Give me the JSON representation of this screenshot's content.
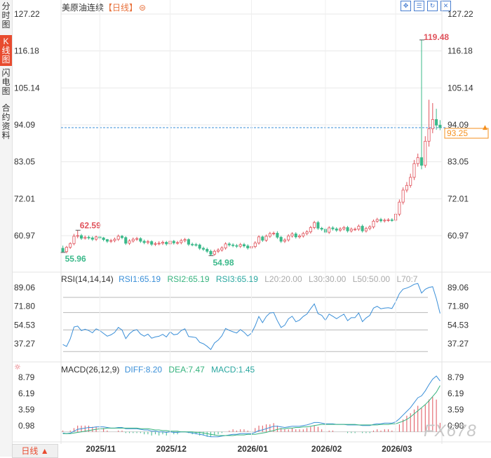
{
  "sidebar": {
    "tabs": [
      {
        "label": "分时图",
        "active": false
      },
      {
        "label": "K线图",
        "active": true
      },
      {
        "label": "闪电图",
        "active": false
      },
      {
        "label": "合约资料",
        "active": false
      }
    ]
  },
  "header": {
    "instrument": "美原油连续",
    "period": "【日线】",
    "period_icon": "⊜",
    "tools": [
      "expand-icon",
      "list-icon",
      "refresh-icon",
      "close-icon"
    ]
  },
  "bottom_tab": {
    "label": "日线 ▲"
  },
  "price_panel": {
    "y_ticks": [
      "127.22",
      "116.18",
      "105.14",
      "94.09",
      "83.05",
      "72.01",
      "60.97"
    ],
    "last_price": "93.25",
    "annotations": {
      "high": "119.48",
      "low": "54.98",
      "left_high": "62.59",
      "left_low": "55.96"
    }
  },
  "rsi_panel": {
    "label": "RSI(14,14,14)",
    "rsi1": "RSI1:65.19",
    "rsi2": "RSI2:65.19",
    "rsi3": "RSI3:65.19",
    "l20": "L20:20.00",
    "l30": "L30:30.00",
    "l50": "L50:50.00",
    "l70": "L70:7",
    "y_ticks": [
      "89.06",
      "71.80",
      "54.53",
      "37.27"
    ]
  },
  "macd_panel": {
    "label": "MACD(26,12,9)",
    "diff": "DIFF:8.20",
    "dea": "DEA:7.47",
    "macd": "MACD:1.45",
    "y_ticks": [
      "8.79",
      "6.19",
      "3.59",
      "0.98"
    ]
  },
  "x_axis": {
    "labels": [
      "2025/11",
      "2025/12",
      "2026/01",
      "2026/02",
      "2026/03"
    ]
  },
  "watermark": "FX678",
  "colors": {
    "up": "#e0525b",
    "down": "#3bb98a",
    "rsi": "#3a8fd8",
    "label_blue": "#3a8fd8",
    "label_green": "#36b37e",
    "last_price": "#f5901e",
    "grid": "#e8e8e8",
    "macd_diff": "#3a8fd8",
    "macd_dea": "#36b37e"
  },
  "chart_data": {
    "type": "candlestick",
    "x": [
      "2025/10/20",
      "2025/10/21",
      "2025/10/22",
      "2025/10/23",
      "2025/10/24",
      "2025/10/27",
      "2025/10/28",
      "2025/10/29",
      "2025/10/30",
      "2025/10/31",
      "2025/11/03",
      "2025/11/04",
      "2025/11/05",
      "2025/11/06",
      "2025/11/07",
      "2025/11/10",
      "2025/11/11",
      "2025/11/12",
      "2025/11/13",
      "2025/11/14",
      "2025/11/17",
      "2025/11/18",
      "2025/11/19",
      "2025/11/20",
      "2025/11/21",
      "2025/11/24",
      "2025/11/25",
      "2025/11/26",
      "2025/11/28",
      "2025/12/01",
      "2025/12/02",
      "2025/12/03",
      "2025/12/04",
      "2025/12/05",
      "2025/12/08",
      "2025/12/09",
      "2025/12/10",
      "2025/12/11",
      "2025/12/12",
      "2025/12/15",
      "2025/12/16",
      "2025/12/17",
      "2025/12/18",
      "2025/12/19",
      "2025/12/22",
      "2025/12/23",
      "2025/12/24",
      "2025/12/26",
      "2025/12/29",
      "2025/12/30",
      "2025/12/31",
      "2026/01/02",
      "2026/01/05",
      "2026/01/06",
      "2026/01/07",
      "2026/01/08",
      "2026/01/09",
      "2026/01/12",
      "2026/01/13",
      "2026/01/14",
      "2026/01/15",
      "2026/01/16",
      "2026/01/20",
      "2026/01/21",
      "2026/01/22",
      "2026/01/23",
      "2026/01/26",
      "2026/01/27",
      "2026/01/28",
      "2026/01/29",
      "2026/01/30",
      "2026/02/02",
      "2026/02/03",
      "2026/02/04",
      "2026/02/05",
      "2026/02/06",
      "2026/02/09",
      "2026/02/10",
      "2026/02/11",
      "2026/02/12",
      "2026/02/13",
      "2026/02/17",
      "2026/02/18",
      "2026/02/19",
      "2026/02/20",
      "2026/02/23",
      "2026/02/24",
      "2026/02/25",
      "2026/02/26",
      "2026/02/27",
      "2026/03/02",
      "2026/03/03",
      "2026/03/04",
      "2026/03/05",
      "2026/03/06",
      "2026/03/09",
      "2026/03/10",
      "2026/03/11",
      "2026/03/12",
      "2026/03/13",
      "2026/03/16",
      "2026/03/17",
      "2026/03/18"
    ],
    "open": [
      57.2,
      56.2,
      57.5,
      58.6,
      60.8,
      61.0,
      60.2,
      60.5,
      60.3,
      59.9,
      60.6,
      60.3,
      59.8,
      59.3,
      59.5,
      59.9,
      60.8,
      60.4,
      58.7,
      59.4,
      59.9,
      60.1,
      59.3,
      58.9,
      59.2,
      58.4,
      58.6,
      58.7,
      59.0,
      58.5,
      59.3,
      58.8,
      58.9,
      59.5,
      59.8,
      58.4,
      58.3,
      58.2,
      57.2,
      56.9,
      56.3,
      55.4,
      56.3,
      56.7,
      57.3,
      58.5,
      58.2,
      58.0,
      57.8,
      58.3,
      57.9,
      57.3,
      57.7,
      58.8,
      60.6,
      59.6,
      60.8,
      61.6,
      61.7,
      60.5,
      59.3,
      59.7,
      60.9,
      61.5,
      60.6,
      60.9,
      61.6,
      62.1,
      63.4,
      64.9,
      63.2,
      62.9,
      62.0,
      63.3,
      63.0,
      62.6,
      63.0,
      63.4,
      62.4,
      62.9,
      62.9,
      63.8,
      62.4,
      63.1,
      63.6,
      65.3,
      65.8,
      65.4,
      65.6,
      65.7,
      65.6,
      67.4,
      71.0,
      74.6,
      76.0,
      78.4,
      82.5,
      84.3,
      82.0,
      89.2,
      92.9,
      95.7,
      94.0
    ],
    "close": [
      56.2,
      57.5,
      58.6,
      60.8,
      61.0,
      60.2,
      60.5,
      60.3,
      59.9,
      60.6,
      60.3,
      59.8,
      59.3,
      59.5,
      59.9,
      60.8,
      60.4,
      58.7,
      59.4,
      59.9,
      60.1,
      59.3,
      58.9,
      59.2,
      58.4,
      58.6,
      58.7,
      59.0,
      58.5,
      59.3,
      58.8,
      58.9,
      59.5,
      59.8,
      58.4,
      58.3,
      58.2,
      57.2,
      56.9,
      56.3,
      55.4,
      56.3,
      56.7,
      57.3,
      58.5,
      58.2,
      58.0,
      57.8,
      58.3,
      57.9,
      57.3,
      57.7,
      58.8,
      60.6,
      59.6,
      60.8,
      61.6,
      61.7,
      60.5,
      59.3,
      59.7,
      60.9,
      61.5,
      60.6,
      60.9,
      61.6,
      62.1,
      63.4,
      64.9,
      63.2,
      62.9,
      62.0,
      63.3,
      63.0,
      62.6,
      63.0,
      63.4,
      62.4,
      62.9,
      62.9,
      63.8,
      62.4,
      63.1,
      63.6,
      65.3,
      65.8,
      65.4,
      65.6,
      65.7,
      65.6,
      67.4,
      71.0,
      74.6,
      76.0,
      78.4,
      82.5,
      84.3,
      82.0,
      89.2,
      92.9,
      95.7,
      94.0,
      93.25
    ],
    "high": [
      58.0,
      57.9,
      59.0,
      61.5,
      62.59,
      61.5,
      61.0,
      61.0,
      60.8,
      61.0,
      61.0,
      60.6,
      60.0,
      60.0,
      60.4,
      61.3,
      61.2,
      60.8,
      59.9,
      60.4,
      60.6,
      60.5,
      59.8,
      59.7,
      59.6,
      59.1,
      59.3,
      59.5,
      59.4,
      59.8,
      59.7,
      59.4,
      60.0,
      60.3,
      60.2,
      58.9,
      58.8,
      58.6,
      57.7,
      57.4,
      56.8,
      56.8,
      57.2,
      57.8,
      59.0,
      59.0,
      58.7,
      58.5,
      58.8,
      58.8,
      58.4,
      58.2,
      59.3,
      61.1,
      61.0,
      61.3,
      62.1,
      62.2,
      62.3,
      60.9,
      60.2,
      61.4,
      62.0,
      62.0,
      61.4,
      62.1,
      62.6,
      63.9,
      65.4,
      65.4,
      63.6,
      63.4,
      63.8,
      63.8,
      63.5,
      63.5,
      63.9,
      63.9,
      63.4,
      63.4,
      64.3,
      64.3,
      63.6,
      64.1,
      65.8,
      66.3,
      66.3,
      66.1,
      66.2,
      66.2,
      67.9,
      71.8,
      75.4,
      77.0,
      79.5,
      83.6,
      85.5,
      119.48,
      90.7,
      101.6,
      100.6,
      98.9,
      95.5
    ],
    "low": [
      55.96,
      55.7,
      57.0,
      58.1,
      60.2,
      59.7,
      59.8,
      59.8,
      59.4,
      59.4,
      59.8,
      59.3,
      58.8,
      58.8,
      59.0,
      59.4,
      59.9,
      58.2,
      58.2,
      58.9,
      59.4,
      58.8,
      58.4,
      58.4,
      57.9,
      57.9,
      58.1,
      58.2,
      58.0,
      58.0,
      58.3,
      58.3,
      58.4,
      59.0,
      57.9,
      57.8,
      57.7,
      56.7,
      56.4,
      55.8,
      54.98,
      54.98,
      55.8,
      56.2,
      56.8,
      57.7,
      57.5,
      57.3,
      57.3,
      57.4,
      56.8,
      56.8,
      57.2,
      58.3,
      59.1,
      59.1,
      60.3,
      61.1,
      60.0,
      58.8,
      58.8,
      59.2,
      60.4,
      60.1,
      60.1,
      60.4,
      61.1,
      61.6,
      62.9,
      62.7,
      62.4,
      61.5,
      61.5,
      62.5,
      62.1,
      62.1,
      62.5,
      61.9,
      61.9,
      62.4,
      62.4,
      61.9,
      61.9,
      62.6,
      63.1,
      64.8,
      64.9,
      64.9,
      65.1,
      65.1,
      65.1,
      66.8,
      70.3,
      73.9,
      75.3,
      77.6,
      81.6,
      80.8,
      81.3,
      87.6,
      91.6,
      92.6,
      92.5
    ]
  },
  "rsi_data": [
    36.5,
    34.7,
    41.8,
    52.7,
    53.5,
    49.3,
    50.6,
    49.4,
    47.3,
    51.0,
    49.3,
    46.7,
    44.2,
    45.4,
    47.6,
    52.3,
    49.9,
    41.9,
    46.4,
    49.2,
    50.3,
    46.2,
    44.2,
    46.1,
    42.3,
    43.5,
    44.1,
    45.9,
    43.5,
    48.2,
    45.5,
    46.1,
    49.4,
    51.0,
    43.9,
    43.4,
    42.9,
    38.5,
    37.2,
    34.9,
    31.8,
    37.9,
    40.6,
    44.5,
    51.3,
    49.5,
    48.3,
    47.1,
    50.3,
    47.8,
    44.3,
    47.0,
    53.8,
    62.4,
    56.7,
    62.3,
    65.6,
    66.1,
    58.5,
    52.2,
    54.3,
    60.2,
    62.6,
    57.5,
    59.0,
    62.4,
    64.6,
    69.5,
    74.0,
    65.0,
    63.5,
    58.8,
    64.6,
    62.6,
    60.3,
    62.5,
    64.5,
    58.5,
    61.3,
    61.3,
    65.6,
    57.6,
    61.0,
    63.4,
    70.1,
    71.8,
    69.5,
    70.1,
    70.5,
    69.8,
    75.9,
    83.5,
    87.6,
    88.6,
    90.1,
    92.1,
    92.8,
    84.0,
    87.5,
    89.1,
    89.9,
    78.9,
    65.19
  ],
  "macd_data": {
    "diff": [
      -0.2,
      -0.3,
      -0.2,
      0.1,
      0.4,
      0.5,
      0.6,
      0.7,
      0.7,
      0.8,
      0.8,
      0.8,
      0.7,
      0.6,
      0.6,
      0.7,
      0.7,
      0.5,
      0.5,
      0.5,
      0.5,
      0.4,
      0.3,
      0.3,
      0.1,
      0.1,
      0.0,
      0.0,
      -0.1,
      0.0,
      -0.1,
      -0.1,
      0.0,
      0.0,
      -0.1,
      -0.2,
      -0.3,
      -0.4,
      -0.5,
      -0.7,
      -0.8,
      -0.8,
      -0.8,
      -0.7,
      -0.6,
      -0.5,
      -0.4,
      -0.4,
      -0.3,
      -0.3,
      -0.3,
      -0.3,
      -0.1,
      0.2,
      0.3,
      0.5,
      0.7,
      0.9,
      0.9,
      0.8,
      0.7,
      0.8,
      0.9,
      0.9,
      0.9,
      1.0,
      1.1,
      1.3,
      1.5,
      1.5,
      1.4,
      1.3,
      1.3,
      1.3,
      1.2,
      1.2,
      1.2,
      1.1,
      1.1,
      1.1,
      1.1,
      1.0,
      1.0,
      1.0,
      1.2,
      1.3,
      1.3,
      1.4,
      1.4,
      1.4,
      1.6,
      2.1,
      2.7,
      3.3,
      3.9,
      4.7,
      5.5,
      5.8,
      6.6,
      7.6,
      8.5,
      9.0,
      8.2
    ],
    "dea": [
      -0.3,
      -0.3,
      -0.3,
      -0.2,
      -0.1,
      0.0,
      0.1,
      0.2,
      0.3,
      0.4,
      0.5,
      0.5,
      0.6,
      0.6,
      0.6,
      0.6,
      0.6,
      0.6,
      0.6,
      0.6,
      0.6,
      0.5,
      0.5,
      0.5,
      0.4,
      0.3,
      0.3,
      0.2,
      0.2,
      0.1,
      0.1,
      0.1,
      0.0,
      0.0,
      0.0,
      0.0,
      -0.1,
      -0.1,
      -0.2,
      -0.3,
      -0.4,
      -0.5,
      -0.6,
      -0.6,
      -0.6,
      -0.6,
      -0.6,
      -0.5,
      -0.5,
      -0.5,
      -0.4,
      -0.4,
      -0.4,
      -0.3,
      -0.2,
      -0.1,
      0.1,
      0.2,
      0.4,
      0.5,
      0.5,
      0.6,
      0.6,
      0.7,
      0.7,
      0.8,
      0.8,
      0.9,
      1.0,
      1.1,
      1.2,
      1.2,
      1.2,
      1.2,
      1.2,
      1.2,
      1.2,
      1.2,
      1.2,
      1.2,
      1.1,
      1.1,
      1.1,
      1.1,
      1.1,
      1.1,
      1.2,
      1.2,
      1.2,
      1.3,
      1.3,
      1.5,
      1.7,
      2.0,
      2.4,
      2.9,
      3.4,
      3.9,
      4.4,
      5.0,
      5.7,
      6.4,
      7.47
    ],
    "hist": [
      0.2,
      0.0,
      0.2,
      0.6,
      1.0,
      1.0,
      1.0,
      1.0,
      0.8,
      0.8,
      0.6,
      0.6,
      0.2,
      0.0,
      0.0,
      0.2,
      0.2,
      -0.2,
      -0.2,
      -0.2,
      -0.2,
      -0.2,
      -0.4,
      -0.4,
      -0.6,
      -0.4,
      -0.6,
      -0.4,
      -0.6,
      -0.2,
      -0.4,
      -0.4,
      0.0,
      0.0,
      -0.2,
      -0.4,
      -0.4,
      -0.6,
      -0.6,
      -0.8,
      -0.8,
      -0.6,
      -0.4,
      -0.2,
      0.0,
      0.2,
      0.4,
      0.2,
      0.4,
      0.4,
      0.2,
      0.2,
      0.6,
      1.0,
      1.0,
      1.2,
      1.2,
      1.4,
      1.0,
      0.6,
      0.4,
      0.4,
      0.6,
      0.4,
      0.4,
      0.4,
      0.6,
      0.8,
      1.0,
      0.8,
      0.4,
      0.2,
      0.2,
      0.2,
      0.0,
      0.0,
      0.0,
      -0.2,
      -0.2,
      -0.2,
      0.0,
      -0.2,
      -0.2,
      -0.2,
      0.2,
      0.4,
      0.2,
      0.4,
      0.4,
      0.2,
      0.6,
      1.2,
      2.0,
      2.6,
      3.0,
      3.6,
      4.2,
      3.8,
      4.4,
      5.2,
      5.6,
      5.2,
      1.45
    ]
  }
}
